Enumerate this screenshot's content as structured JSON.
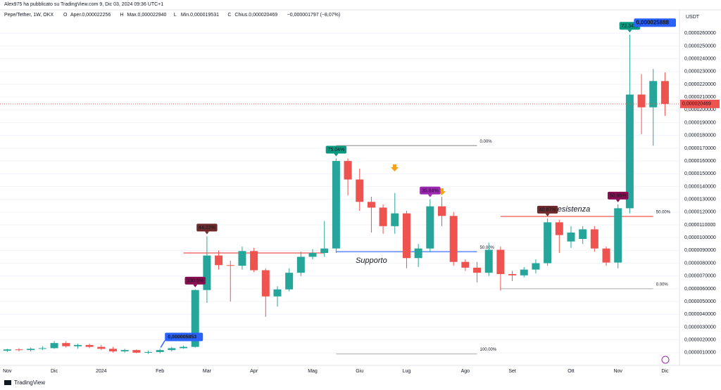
{
  "header": {
    "author_line": "Alex975 ha pubblicato su TradingView.com 9, Dic 03, 2024 09:36 UTC+1",
    "symbol": "Pepe/Tether, 1W, OKX",
    "legend": [
      {
        "key": "O",
        "text": "Aper.0,000022256"
      },
      {
        "key": "H",
        "text": "Max.0,000022940"
      },
      {
        "key": "L",
        "text": "Min.0,000019531"
      },
      {
        "key": "C",
        "text": "Chius.0,000020469"
      }
    ],
    "change": "−0,000001797 (−8,07%)",
    "currency": "USDT",
    "brand": "TradingView"
  },
  "chart_data": {
    "type": "candlestick",
    "categories": [
      "Nov",
      null,
      null,
      null,
      "Dic",
      null,
      null,
      null,
      "2024",
      null,
      null,
      null,
      null,
      "Feb",
      null,
      null,
      null,
      "Mar",
      null,
      null,
      null,
      "Apr",
      null,
      null,
      null,
      null,
      "Mag",
      null,
      null,
      null,
      "Giu",
      null,
      null,
      null,
      "Lug",
      null,
      null,
      null,
      null,
      "Ago",
      null,
      null,
      null,
      "Set",
      null,
      null,
      null,
      null,
      "Ott",
      null,
      null,
      null,
      "Nov",
      null,
      null,
      null,
      "Dic"
    ],
    "open": [
      1.15e-06,
      1.25e-06,
      1.2e-06,
      1.3e-06,
      1.35e-06,
      1.75e-06,
      1.5e-06,
      1.6e-06,
      1.45e-06,
      1.3e-06,
      1.1e-06,
      1.2e-06,
      1e-06,
      1.05e-06,
      1.2e-06,
      1.35e-06,
      1.45e-06,
      5.9e-06,
      8.6e-06,
      7.85e-06,
      7.8e-06,
      8.95e-06,
      7.45e-06,
      5.4e-06,
      5.95e-06,
      7.25e-06,
      8.5e-06,
      8.8e-06,
      9.15e-06,
      1.6e-05,
      1.455e-05,
      1.28e-05,
      1.235e-05,
      1.09e-05,
      1.19e-05,
      8.4e-06,
      9.15e-06,
      1.245e-05,
      1.17e-05,
      8.1e-06,
      7.65e-06,
      7.25e-06,
      9.05e-06,
      7.15e-06,
      7.05e-06,
      7.5e-06,
      8e-06,
      1.12e-05,
      9.7e-06,
      9.9e-06,
      1.065e-05,
      9.15e-06,
      8.05e-06,
      1.23e-05,
      2.12e-05,
      2.02e-05,
      2.2256e-05
    ],
    "high": [
      1.3e-06,
      1.35e-06,
      1.4e-06,
      1.5e-06,
      1.9e-06,
      1.9e-06,
      1.7e-06,
      1.7e-06,
      1.6e-06,
      1.45e-06,
      1.3e-06,
      1.25e-06,
      1.15e-06,
      1.3e-06,
      1.45e-06,
      1.55e-06,
      5.95e-06,
      1.01e-05,
      9e-06,
      8.2e-06,
      9.3e-06,
      9.2e-06,
      7.6e-06,
      6.2e-06,
      7.6e-06,
      8.9e-06,
      9.1e-06,
      1.13e-05,
      1.62e-05,
      1.62e-05,
      1.54e-05,
      1.32e-05,
      1.26e-05,
      1.35e-05,
      1.21e-05,
      9.5e-06,
      1.3e-05,
      1.32e-05,
      1.2e-05,
      8.3e-06,
      8.1e-06,
      9.6e-06,
      9.3e-06,
      7.4e-06,
      7.7e-06,
      8.3e-06,
      1.15e-05,
      1.14e-05,
      1.09e-05,
      1.09e-05,
      1.09e-05,
      9.3e-06,
      1.26e-05,
      2.5888e-05,
      2.28e-05,
      2.32e-05,
      2.294e-05
    ],
    "low": [
      1.05e-06,
      1.1e-06,
      1.1e-06,
      1.2e-06,
      1.3e-06,
      1.4e-06,
      1.3e-06,
      1.35e-06,
      1.2e-06,
      1e-06,
      1e-06,
      9.5e-07,
      9e-07,
      9.5e-07,
      1.1e-06,
      1.3e-06,
      1.4e-06,
      4.9e-06,
      7.5e-06,
      5e-06,
      7.5e-06,
      7.3e-06,
      3.8e-06,
      4.6e-06,
      5.8e-06,
      7e-06,
      8.3e-06,
      8.5e-06,
      8.8e-06,
      1.33e-05,
      1.21e-05,
      1.04e-05,
      1.03e-05,
      1.03e-05,
      7.6e-06,
      7.7e-06,
      8.9e-06,
      1.09e-05,
      7.8e-06,
      7.4e-06,
      6.5e-06,
      7e-06,
      5.853e-06,
      6.6e-06,
      6.9e-06,
      7.2e-06,
      7.8e-06,
      8.8e-06,
      9.2e-06,
      9.5e-06,
      8.9e-06,
      7.8e-06,
      7.6e-06,
      1.19e-05,
      1.81e-05,
      1.72e-05,
      1.9531e-05
    ],
    "close": [
      1.25e-06,
      1.2e-06,
      1.3e-06,
      1.35e-06,
      1.75e-06,
      1.5e-06,
      1.6e-06,
      1.45e-06,
      1.3e-06,
      1.1e-06,
      1.2e-06,
      1e-06,
      1.05e-06,
      1.2e-06,
      1.35e-06,
      1.45e-06,
      5.9e-06,
      8.6e-06,
      7.85e-06,
      7.8e-06,
      8.95e-06,
      7.45e-06,
      5.4e-06,
      5.95e-06,
      7.25e-06,
      8.5e-06,
      8.8e-06,
      9.15e-06,
      1.6e-05,
      1.455e-05,
      1.28e-05,
      1.235e-05,
      1.09e-05,
      1.19e-05,
      8.4e-06,
      9.15e-06,
      1.245e-05,
      1.17e-05,
      8.1e-06,
      7.65e-06,
      7.25e-06,
      9.05e-06,
      7.15e-06,
      7.05e-06,
      7.5e-06,
      8e-06,
      1.12e-05,
      1.02e-05,
      1.04e-05,
      1.065e-05,
      9.15e-06,
      8.05e-06,
      1.23e-05,
      2.12e-05,
      2.02e-05,
      2.2256e-05,
      2.0469e-05
    ],
    "up_color": "#26a69a",
    "down_color": "#ef5350",
    "last_label": "0,000020469",
    "high_label": "0,000025888",
    "low_label": "0,000005853",
    "ylim": [
      0,
      2.75e-05
    ],
    "yticks": [
      {
        "value": 1e-06,
        "label": "0,0000010000"
      },
      {
        "value": 2e-06,
        "label": "0,0000020000"
      },
      {
        "value": 3e-06,
        "label": "0,0000030000"
      },
      {
        "value": 4e-06,
        "label": "0,0000040000"
      },
      {
        "value": 5e-06,
        "label": "0,0000050000"
      },
      {
        "value": 6e-06,
        "label": "0,0000060000"
      },
      {
        "value": 7e-06,
        "label": "0,0000070000"
      },
      {
        "value": 8e-06,
        "label": "0,0000080000"
      },
      {
        "value": 9e-06,
        "label": "0,0000090000"
      },
      {
        "value": 1e-05,
        "label": "0,0000100000"
      },
      {
        "value": 1.1e-05,
        "label": "0,0000110000"
      },
      {
        "value": 1.2e-05,
        "label": "0,0000120000"
      },
      {
        "value": 1.3e-05,
        "label": "0,0000130000"
      },
      {
        "value": 1.4e-05,
        "label": "0,0000140000"
      },
      {
        "value": 1.5e-05,
        "label": "0,0000150000"
      },
      {
        "value": 1.6e-05,
        "label": "0,0000160000"
      },
      {
        "value": 1.7e-05,
        "label": "0,0000170000"
      },
      {
        "value": 1.8e-05,
        "label": "0,0000180000"
      },
      {
        "value": 1.9e-05,
        "label": "0,0000190000"
      },
      {
        "value": 2e-05,
        "label": "0,0000200000"
      },
      {
        "value": 2.1e-05,
        "label": "0,0000210000"
      },
      {
        "value": 2.2e-05,
        "label": "0,0000220000"
      },
      {
        "value": 2.3e-05,
        "label": "0,0000230000"
      },
      {
        "value": 2.4e-05,
        "label": "0,0000240000"
      },
      {
        "value": 2.5e-05,
        "label": "0,0000250000"
      },
      {
        "value": 2.6e-05,
        "label": "0,0000260000"
      }
    ],
    "grid": true,
    "annotations": [
      {
        "text": "330.6%",
        "index": 16,
        "color": "#880e4f"
      },
      {
        "text": "44.22%",
        "index": 17,
        "color": "#6d2a2a"
      },
      {
        "text": "75.04%",
        "index": 28,
        "color": "#089981"
      },
      {
        "text": "35.84%",
        "index": 36,
        "color": "#9c27b0"
      },
      {
        "text": "40.87%",
        "index": 46,
        "color": "#6d2a2a"
      },
      {
        "text": "50.66%",
        "index": 52,
        "color": "#880e4f"
      },
      {
        "text": "72.34%",
        "index": 53,
        "color": "#089981"
      }
    ],
    "levels": [
      {
        "label": "0.00%",
        "value": 1.72e-05,
        "from": 28,
        "to": 40,
        "color": "#9e9e9e"
      },
      {
        "label": "50.00%",
        "value": 8.9e-06,
        "from": 28,
        "to": 40,
        "color": "#2962ff"
      },
      {
        "label": "100.00%",
        "value": 9e-07,
        "from": 28,
        "to": 40,
        "color": "#bdbdbd"
      },
      {
        "label": "50.00%",
        "value": 1.166e-05,
        "from": 42,
        "to": 55,
        "color": "#ef5350"
      },
      {
        "label": "0.00%",
        "value": 6e-06,
        "from": 42,
        "to": 55,
        "color": "#bdbdbd"
      }
    ],
    "trendlines": [
      {
        "value": 8.8e-06,
        "from": 15,
        "to": 27,
        "color": "#ef5350"
      }
    ],
    "notes": [
      {
        "text": "Supporto",
        "index": 31,
        "value": 8.2e-06,
        "color": "#1e53e5"
      },
      {
        "text": "Resistenza",
        "index": 48,
        "value": 1.22e-05,
        "color": "#ef5350"
      }
    ]
  }
}
